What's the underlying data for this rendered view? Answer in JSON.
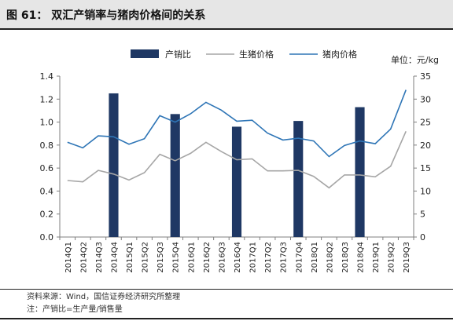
{
  "title": "图 61： 双汇产销率与猪肉价格间的关系",
  "unit_label": "单位：元/kg",
  "notes": {
    "source": "资料来源：Wind，国信证券经济研究所整理",
    "note": "注：产销比=生产量/销售量"
  },
  "colors": {
    "bar": "#1f3864",
    "hog_line": "#a6a6a6",
    "pork_line": "#2e75b6"
  },
  "chart_data": {
    "type": "bar",
    "categories": [
      "2014Q1",
      "2014Q2",
      "2014Q3",
      "2014Q4",
      "2015Q1",
      "2015Q2",
      "2015Q3",
      "2015Q4",
      "2016Q1",
      "2016Q2",
      "2016Q3",
      "2016Q4",
      "2017Q1",
      "2017Q2",
      "2017Q3",
      "2017Q4",
      "2018Q1",
      "2018Q2",
      "2018Q3",
      "2018Q4",
      "2019Q1",
      "2019Q2",
      "2019Q3"
    ],
    "left_axis": {
      "min": 0.0,
      "max": 1.4,
      "ticks": [
        "0.0",
        "0.2",
        "0.4",
        "0.6",
        "0.8",
        "1.0",
        "1.2",
        "1.4"
      ]
    },
    "right_axis": {
      "min": 0,
      "max": 35,
      "ticks": [
        "0",
        "5",
        "10",
        "15",
        "20",
        "25",
        "30",
        "35"
      ]
    },
    "legend_position": "top-center",
    "series": [
      {
        "name": "产销比",
        "type": "bar",
        "axis": "left",
        "values": [
          null,
          null,
          null,
          1.25,
          null,
          null,
          null,
          1.07,
          null,
          null,
          null,
          0.96,
          null,
          null,
          null,
          1.01,
          null,
          null,
          null,
          1.13,
          null,
          null,
          null
        ]
      },
      {
        "name": "生猪价格",
        "type": "line",
        "axis": "right",
        "values": [
          12.3,
          12.0,
          14.5,
          13.7,
          12.4,
          14.0,
          18.0,
          16.6,
          18.2,
          20.6,
          18.6,
          16.8,
          17.0,
          14.4,
          14.4,
          14.5,
          13.2,
          10.7,
          13.5,
          13.5,
          13.1,
          15.4,
          23.0
        ]
      },
      {
        "name": "猪肉价格",
        "type": "line",
        "axis": "right",
        "values": [
          20.6,
          19.4,
          22.0,
          21.8,
          20.2,
          21.4,
          26.4,
          25.0,
          26.8,
          29.3,
          27.6,
          25.2,
          25.4,
          22.6,
          21.1,
          21.5,
          20.9,
          17.5,
          19.9,
          20.9,
          20.3,
          23.5,
          32.0
        ]
      }
    ]
  }
}
